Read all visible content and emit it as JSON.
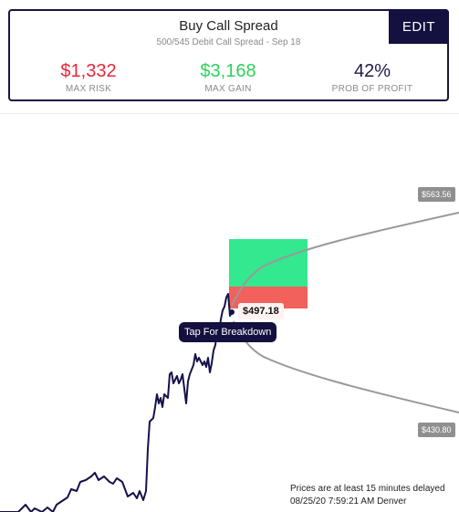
{
  "header": {
    "title": "Buy Call Spread",
    "subtitle": "500/545 Debit Call Spread - Sep 18",
    "edit_label": "EDIT"
  },
  "stats": {
    "max_risk": {
      "value": "$1,332",
      "label": "MAX RISK"
    },
    "max_gain": {
      "value": "$3,168",
      "label": "MAX GAIN"
    },
    "prob_profit": {
      "value": "42%",
      "label": "PROB OF PROFIT"
    }
  },
  "chart": {
    "upper_price": "$563.56",
    "lower_price": "$430.80",
    "current_price": "$497.18",
    "breakdown_label": "Tap For Breakdown"
  },
  "footer": {
    "delay_note": "Prices are at least 15 minutes delayed",
    "timestamp": "08/25/20 7:59:21 AM Denver"
  },
  "colors": {
    "accent": "#14103f",
    "loss": "#e5283c",
    "gain": "#2fcf5e",
    "gain_zone": "#34e88f",
    "loss_zone": "#f2615b"
  }
}
